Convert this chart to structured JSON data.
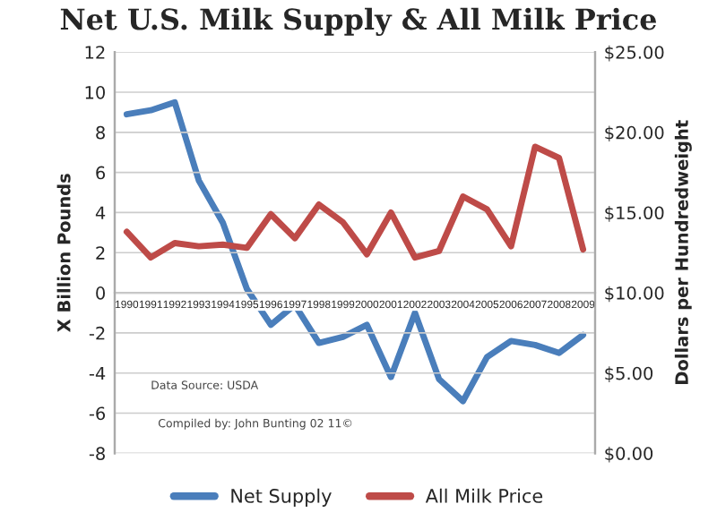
{
  "chart_data": {
    "type": "line",
    "title": "Net U.S. Milk Supply & All Milk Price",
    "ylabel": "X Billion Pounds",
    "y2label": "Dollars per Hundredweight",
    "categories": [
      "1990",
      "1991",
      "1992",
      "1993",
      "1994",
      "1995",
      "1996",
      "1997",
      "1998",
      "1999",
      "2000",
      "2001",
      "2002",
      "2003",
      "2004",
      "2005",
      "2006",
      "2007",
      "2008",
      "2009"
    ],
    "series": [
      {
        "name": "Net Supply",
        "color": "#4a7ebb",
        "values": [
          8.9,
          9.1,
          9.5,
          5.6,
          3.5,
          0.2,
          -1.6,
          -0.6,
          -2.5,
          -2.2,
          -1.6,
          -4.2,
          -1.0,
          -4.3,
          -5.4,
          -3.2,
          -2.4,
          -2.6,
          -3.0,
          -2.1
        ]
      },
      {
        "name": "All Milk Price",
        "color": "#be4b48",
        "axis": "y2",
        "values": [
          13.8,
          12.2,
          13.1,
          12.9,
          13.0,
          12.8,
          14.9,
          13.4,
          15.5,
          14.4,
          12.4,
          15.0,
          12.2,
          12.6,
          16.0,
          15.2,
          12.9,
          19.1,
          18.4,
          12.7
        ]
      }
    ],
    "ylim": [
      -8,
      12
    ],
    "yticks": [
      -8,
      -6,
      -4,
      -2,
      0,
      2,
      4,
      6,
      8,
      10,
      12
    ],
    "y2lim": [
      0,
      25
    ],
    "y2ticks": [
      {
        "value": 0,
        "label": "$0.00"
      },
      {
        "value": 5,
        "label": "$5.00"
      },
      {
        "value": 10,
        "label": "$10.00"
      },
      {
        "value": 15,
        "label": "$15.00"
      },
      {
        "value": 20,
        "label": "$20.00"
      },
      {
        "value": 25,
        "label": "$25.00"
      }
    ],
    "grid": "y",
    "legend": "bottom",
    "annotations": [
      {
        "text": "Data Source: USDA"
      },
      {
        "text": "Compiled by: John Bunting 02 11©"
      }
    ]
  }
}
